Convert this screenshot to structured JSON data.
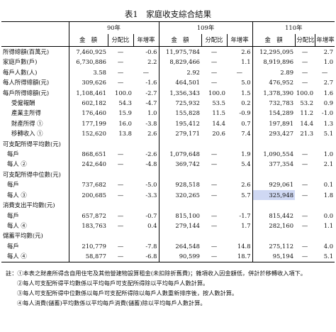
{
  "title": "表1　家庭收支綜合結果",
  "years": [
    "90年",
    "109年",
    "110年"
  ],
  "subheaders": [
    "金　額",
    "分配比",
    "年增率"
  ],
  "rows": [
    {
      "label": "所得總額(百萬元)",
      "indent": 0,
      "v": [
        "7,460,925",
        "—",
        "-0.6",
        "11,975,784",
        "—",
        "2.6",
        "12,295,095",
        "—",
        "2.7"
      ]
    },
    {
      "label": "家庭戶數(戶)",
      "indent": 0,
      "v": [
        "6,730,886",
        "—",
        "2.2",
        "8,829,466",
        "—",
        "1.1",
        "8,919,896",
        "—",
        "1.0"
      ]
    },
    {
      "label": "每戶人數(人)",
      "indent": 0,
      "v": [
        "3.58",
        "—",
        "—",
        "2.92",
        "—",
        "—",
        "2.89",
        "—",
        "—"
      ]
    },
    {
      "label": "每人所得總額(元)",
      "indent": 0,
      "v": [
        "309,626",
        "—",
        "-1.6",
        "464,501",
        "—",
        "5.0",
        "476,952",
        "—",
        "2.7"
      ]
    },
    {
      "label": "每戶所得總額(元)",
      "indent": 0,
      "v": [
        "1,108,461",
        "100.0",
        "-2.7",
        "1,356,343",
        "100.0",
        "1.5",
        "1,378,390",
        "100.0",
        "1.6"
      ]
    },
    {
      "label": "受僱報酬",
      "indent": 2,
      "v": [
        "602,182",
        "54.3",
        "-4.7",
        "725,932",
        "53.5",
        "0.2",
        "732,783",
        "53.2",
        "0.9"
      ]
    },
    {
      "label": "產業主所得",
      "indent": 2,
      "v": [
        "176,460",
        "15.9",
        "1.0",
        "155,828",
        "11.5",
        "-0.9",
        "154,289",
        "11.2",
        "-1.0"
      ]
    },
    {
      "label": "財產所得 ①",
      "indent": 2,
      "v": [
        "177,199",
        "16.0",
        "-3.8",
        "195,412",
        "14.4",
        "0.7",
        "197,891",
        "14.4",
        "1.3"
      ]
    },
    {
      "label": "移轉收入 ①",
      "indent": 2,
      "v": [
        "152,620",
        "13.8",
        "2.6",
        "279,171",
        "20.6",
        "7.4",
        "293,427",
        "21.3",
        "5.1"
      ]
    },
    {
      "label": "可支配所得平均數(元)",
      "indent": 0,
      "v": [
        "",
        "",
        "",
        "",
        "",
        "",
        "",
        "",
        ""
      ]
    },
    {
      "label": "每戶",
      "indent": 1,
      "v": [
        "868,651",
        "—",
        "-2.6",
        "1,079,648",
        "—",
        "1.9",
        "1,090,554",
        "—",
        "1.0"
      ]
    },
    {
      "label": "每人 ②",
      "indent": 1,
      "v": [
        "242,640",
        "—",
        "-4.8",
        "369,742",
        "—",
        "5.4",
        "377,354",
        "—",
        "2.1"
      ]
    },
    {
      "label": "可支配所得中位數(元)",
      "indent": 0,
      "v": [
        "",
        "",
        "",
        "",
        "",
        "",
        "",
        "",
        ""
      ]
    },
    {
      "label": "每戶",
      "indent": 1,
      "v": [
        "737,682",
        "—",
        "-5.0",
        "928,518",
        "—",
        "2.6",
        "929,061",
        "—",
        "0.1"
      ]
    },
    {
      "label": "每人 ③",
      "indent": 1,
      "v": [
        "200,685",
        "—",
        "-3.3",
        "320,265",
        "—",
        "5.7",
        "325,948",
        "—",
        "1.8"
      ]
    },
    {
      "label": "消費支出平均數(元)",
      "indent": 0,
      "v": [
        "",
        "",
        "",
        "",
        "",
        "",
        "",
        "",
        ""
      ]
    },
    {
      "label": "每戶",
      "indent": 1,
      "v": [
        "657,872",
        "—",
        "-0.7",
        "815,100",
        "—",
        "-1.7",
        "815,442",
        "—",
        "0.0"
      ]
    },
    {
      "label": "每人 ④",
      "indent": 1,
      "v": [
        "183,763",
        "—",
        "0.4",
        "279,144",
        "—",
        "1.7",
        "282,160",
        "—",
        "1.1"
      ]
    },
    {
      "label": "儲蓄平均數(元)",
      "indent": 0,
      "v": [
        "",
        "",
        "",
        "",
        "",
        "",
        "",
        "",
        ""
      ]
    },
    {
      "label": "每戶",
      "indent": 1,
      "v": [
        "210,779",
        "—",
        "-7.8",
        "264,548",
        "—",
        "14.8",
        "275,112",
        "—",
        "4.0"
      ]
    },
    {
      "label": "每人 ④",
      "indent": 1,
      "v": [
        "58,877",
        "—",
        "-6.8",
        "90,599",
        "—",
        "18.7",
        "95,194",
        "—",
        "5.1"
      ]
    }
  ],
  "notes": [
    "註：①本表之財產所得含自用住宅及其他營建物設算租金(未扣除折舊費)；雜項收入因金額低，併計於移轉收入項下。",
    "②每人可支配所得平均數係以平均每戶可支配所得除以平均每戶人數計算。",
    "③每人可支配所得中位數係以每戶可支配所得除以每戶人數重新排序後，按人數計算。",
    "④每人消費(儲蓄)平均數係以平均每戶消費(儲蓄)除以平均每戶人數計算。"
  ]
}
